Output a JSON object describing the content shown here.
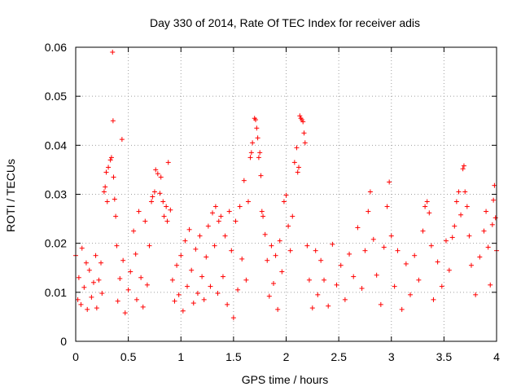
{
  "chart_data": {
    "type": "scatter",
    "title": "Day 330 of 2014, Rate Of TEC Index for receiver adis",
    "xlabel": "GPS time / hours",
    "ylabel": "ROTI / TECUs",
    "xlim": [
      0,
      4
    ],
    "ylim": [
      0,
      0.06
    ],
    "xticks": [
      0,
      0.5,
      1,
      1.5,
      2,
      2.5,
      3,
      3.5,
      4
    ],
    "xtick_labels": [
      "0",
      "0.5",
      "1",
      "1.5",
      "2",
      "2.5",
      "3",
      "3.5",
      "4"
    ],
    "yticks": [
      0,
      0.01,
      0.02,
      0.03,
      0.04,
      0.05,
      0.06
    ],
    "ytick_labels": [
      "0",
      "0.01",
      "0.02",
      "0.03",
      "0.04",
      "0.05",
      "0.06"
    ],
    "grid": true,
    "marker": "+",
    "color": "#ff0000",
    "series": [
      {
        "name": "ROTI",
        "points": [
          [
            0.0,
            0.0175
          ],
          [
            0.02,
            0.0085
          ],
          [
            0.03,
            0.013
          ],
          [
            0.05,
            0.0075
          ],
          [
            0.06,
            0.019
          ],
          [
            0.08,
            0.011
          ],
          [
            0.1,
            0.016
          ],
          [
            0.11,
            0.0065
          ],
          [
            0.13,
            0.0145
          ],
          [
            0.15,
            0.009
          ],
          [
            0.17,
            0.012
          ],
          [
            0.19,
            0.0175
          ],
          [
            0.2,
            0.0068
          ],
          [
            0.22,
            0.0125
          ],
          [
            0.24,
            0.016
          ],
          [
            0.25,
            0.0098
          ],
          [
            0.27,
            0.0305
          ],
          [
            0.28,
            0.0315
          ],
          [
            0.29,
            0.0345
          ],
          [
            0.3,
            0.0285
          ],
          [
            0.31,
            0.0355
          ],
          [
            0.33,
            0.037
          ],
          [
            0.34,
            0.0375
          ],
          [
            0.35,
            0.059
          ],
          [
            0.355,
            0.045
          ],
          [
            0.36,
            0.0335
          ],
          [
            0.37,
            0.029
          ],
          [
            0.38,
            0.0255
          ],
          [
            0.39,
            0.0195
          ],
          [
            0.4,
            0.0082
          ],
          [
            0.42,
            0.0128
          ],
          [
            0.44,
            0.0412
          ],
          [
            0.45,
            0.0165
          ],
          [
            0.47,
            0.0058
          ],
          [
            0.5,
            0.0105
          ],
          [
            0.52,
            0.0142
          ],
          [
            0.55,
            0.0225
          ],
          [
            0.57,
            0.0178
          ],
          [
            0.58,
            0.0085
          ],
          [
            0.6,
            0.0265
          ],
          [
            0.62,
            0.013
          ],
          [
            0.64,
            0.007
          ],
          [
            0.66,
            0.0245
          ],
          [
            0.68,
            0.0115
          ],
          [
            0.7,
            0.0195
          ],
          [
            0.72,
            0.0285
          ],
          [
            0.73,
            0.0295
          ],
          [
            0.75,
            0.0305
          ],
          [
            0.76,
            0.035
          ],
          [
            0.78,
            0.0342
          ],
          [
            0.8,
            0.0302
          ],
          [
            0.81,
            0.0335
          ],
          [
            0.83,
            0.0285
          ],
          [
            0.84,
            0.0255
          ],
          [
            0.86,
            0.0275
          ],
          [
            0.87,
            0.0245
          ],
          [
            0.88,
            0.0365
          ],
          [
            0.9,
            0.0268
          ],
          [
            0.92,
            0.0125
          ],
          [
            0.94,
            0.0082
          ],
          [
            0.96,
            0.0155
          ],
          [
            0.98,
            0.0095
          ],
          [
            1.0,
            0.0175
          ],
          [
            1.02,
            0.0062
          ],
          [
            1.04,
            0.0205
          ],
          [
            1.06,
            0.0112
          ],
          [
            1.08,
            0.0228
          ],
          [
            1.1,
            0.0145
          ],
          [
            1.12,
            0.0078
          ],
          [
            1.14,
            0.0188
          ],
          [
            1.16,
            0.0098
          ],
          [
            1.18,
            0.0215
          ],
          [
            1.2,
            0.0132
          ],
          [
            1.22,
            0.0085
          ],
          [
            1.24,
            0.0172
          ],
          [
            1.26,
            0.0235
          ],
          [
            1.28,
            0.0112
          ],
          [
            1.3,
            0.0262
          ],
          [
            1.32,
            0.0195
          ],
          [
            1.33,
            0.0275
          ],
          [
            1.35,
            0.0098
          ],
          [
            1.36,
            0.0245
          ],
          [
            1.38,
            0.0255
          ],
          [
            1.4,
            0.0132
          ],
          [
            1.42,
            0.0215
          ],
          [
            1.44,
            0.0075
          ],
          [
            1.46,
            0.0265
          ],
          [
            1.48,
            0.0185
          ],
          [
            1.5,
            0.0048
          ],
          [
            1.52,
            0.0245
          ],
          [
            1.54,
            0.0105
          ],
          [
            1.56,
            0.0275
          ],
          [
            1.58,
            0.0168
          ],
          [
            1.6,
            0.0328
          ],
          [
            1.62,
            0.0125
          ],
          [
            1.64,
            0.0285
          ],
          [
            1.66,
            0.0375
          ],
          [
            1.67,
            0.0385
          ],
          [
            1.68,
            0.0405
          ],
          [
            1.7,
            0.0455
          ],
          [
            1.71,
            0.0452
          ],
          [
            1.72,
            0.0435
          ],
          [
            1.73,
            0.0415
          ],
          [
            1.74,
            0.0375
          ],
          [
            1.75,
            0.0385
          ],
          [
            1.76,
            0.0338
          ],
          [
            1.77,
            0.0265
          ],
          [
            1.78,
            0.0255
          ],
          [
            1.8,
            0.0218
          ],
          [
            1.82,
            0.0165
          ],
          [
            1.84,
            0.0092
          ],
          [
            1.86,
            0.0195
          ],
          [
            1.88,
            0.0118
          ],
          [
            1.9,
            0.0175
          ],
          [
            1.92,
            0.0065
          ],
          [
            1.94,
            0.0205
          ],
          [
            1.96,
            0.0142
          ],
          [
            1.98,
            0.0285
          ],
          [
            2.0,
            0.0298
          ],
          [
            2.02,
            0.0235
          ],
          [
            2.04,
            0.0185
          ],
          [
            2.06,
            0.0255
          ],
          [
            2.08,
            0.0365
          ],
          [
            2.1,
            0.0395
          ],
          [
            2.11,
            0.0345
          ],
          [
            2.12,
            0.0355
          ],
          [
            2.13,
            0.046
          ],
          [
            2.14,
            0.0455
          ],
          [
            2.15,
            0.0452
          ],
          [
            2.16,
            0.0448
          ],
          [
            2.17,
            0.0425
          ],
          [
            2.18,
            0.0405
          ],
          [
            2.2,
            0.0195
          ],
          [
            2.22,
            0.0125
          ],
          [
            2.25,
            0.0068
          ],
          [
            2.28,
            0.0185
          ],
          [
            2.3,
            0.0095
          ],
          [
            2.33,
            0.0165
          ],
          [
            2.36,
            0.0125
          ],
          [
            2.4,
            0.0072
          ],
          [
            2.44,
            0.0198
          ],
          [
            2.48,
            0.0115
          ],
          [
            2.52,
            0.0155
          ],
          [
            2.56,
            0.0085
          ],
          [
            2.6,
            0.0178
          ],
          [
            2.64,
            0.0132
          ],
          [
            2.68,
            0.0232
          ],
          [
            2.72,
            0.0108
          ],
          [
            2.75,
            0.0185
          ],
          [
            2.78,
            0.0265
          ],
          [
            2.8,
            0.0305
          ],
          [
            2.83,
            0.0208
          ],
          [
            2.86,
            0.0135
          ],
          [
            2.9,
            0.0075
          ],
          [
            2.93,
            0.0192
          ],
          [
            2.96,
            0.0275
          ],
          [
            2.98,
            0.0325
          ],
          [
            3.0,
            0.0215
          ],
          [
            3.03,
            0.0112
          ],
          [
            3.06,
            0.0185
          ],
          [
            3.1,
            0.0065
          ],
          [
            3.14,
            0.0158
          ],
          [
            3.18,
            0.0095
          ],
          [
            3.22,
            0.0175
          ],
          [
            3.26,
            0.0125
          ],
          [
            3.3,
            0.0225
          ],
          [
            3.32,
            0.0275
          ],
          [
            3.34,
            0.0285
          ],
          [
            3.36,
            0.0262
          ],
          [
            3.38,
            0.0195
          ],
          [
            3.4,
            0.0085
          ],
          [
            3.44,
            0.0162
          ],
          [
            3.48,
            0.0112
          ],
          [
            3.52,
            0.0205
          ],
          [
            3.55,
            0.0145
          ],
          [
            3.58,
            0.0212
          ],
          [
            3.6,
            0.0235
          ],
          [
            3.62,
            0.0285
          ],
          [
            3.64,
            0.0305
          ],
          [
            3.66,
            0.0258
          ],
          [
            3.68,
            0.0352
          ],
          [
            3.69,
            0.0358
          ],
          [
            3.7,
            0.0305
          ],
          [
            3.72,
            0.0275
          ],
          [
            3.74,
            0.0215
          ],
          [
            3.76,
            0.0155
          ],
          [
            3.8,
            0.0095
          ],
          [
            3.84,
            0.0172
          ],
          [
            3.88,
            0.0225
          ],
          [
            3.9,
            0.0265
          ],
          [
            3.92,
            0.0192
          ],
          [
            3.94,
            0.0115
          ],
          [
            3.96,
            0.0238
          ],
          [
            3.97,
            0.0288
          ],
          [
            3.98,
            0.0318
          ],
          [
            3.99,
            0.0252
          ],
          [
            4.0,
            0.0185
          ]
        ]
      }
    ]
  }
}
